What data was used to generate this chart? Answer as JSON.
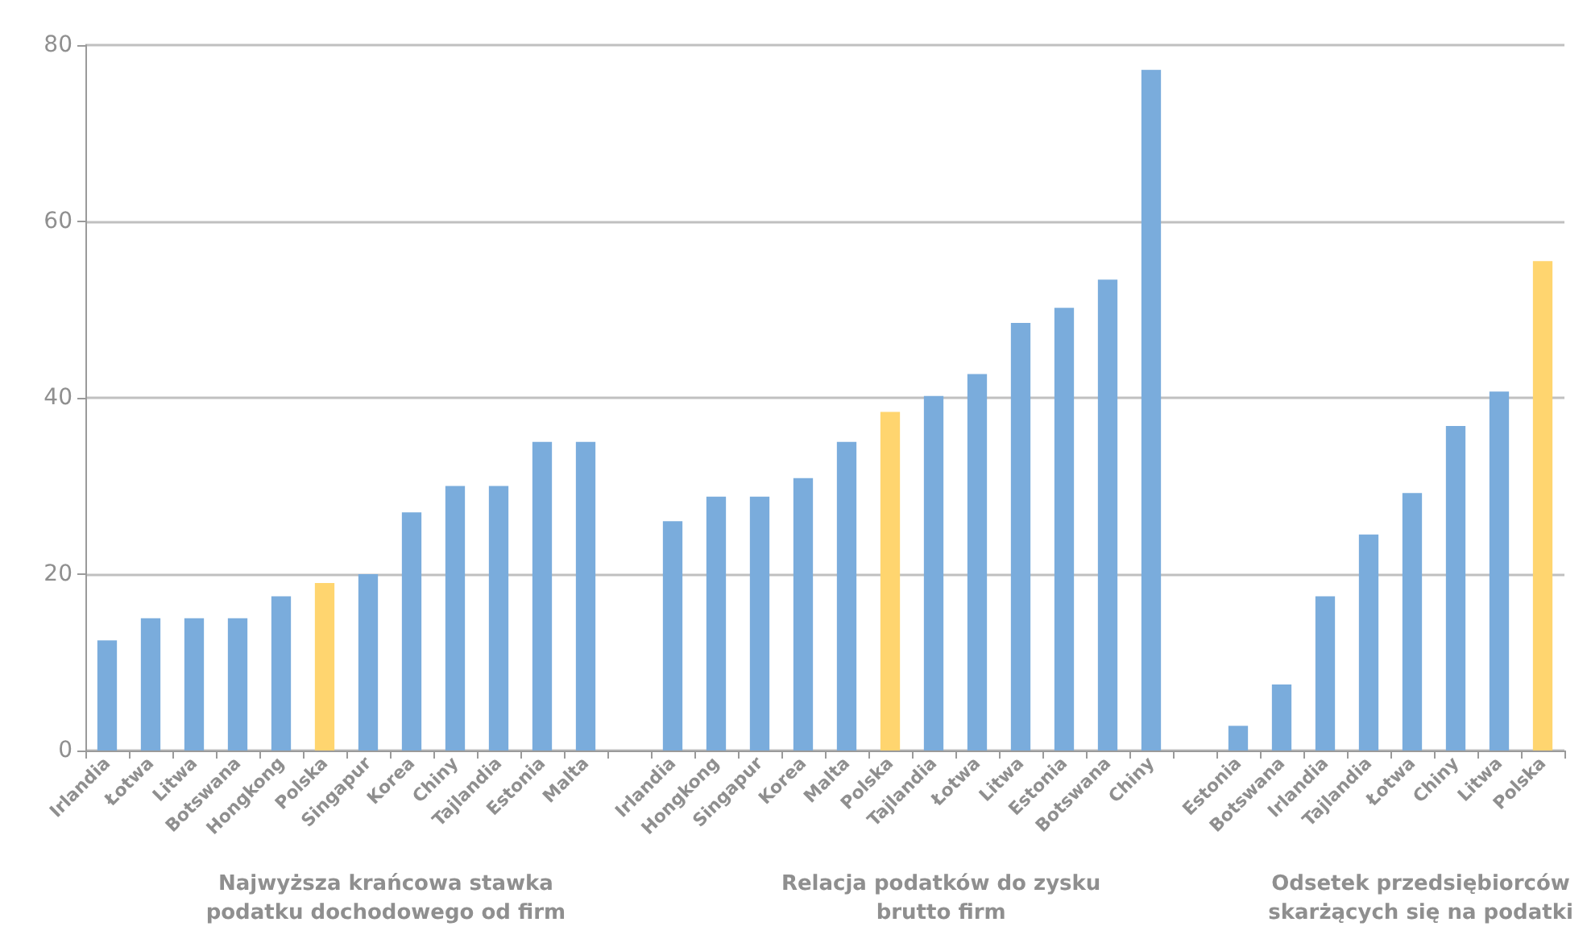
{
  "chart_data": {
    "type": "bar",
    "categories": [
      "Irlandia",
      "Łotwa",
      "Litwa",
      "Botswana",
      "Hongkong",
      "Polska",
      "Singapur",
      "Korea",
      "Chiny",
      "Tajlandia",
      "Estonia",
      "Malta",
      null,
      "Irlandia",
      "Hongkong",
      "Singapur",
      "Korea",
      "Malta",
      "Polska",
      "Tajlandia",
      "Łotwa",
      "Litwa",
      "Estonia",
      "Botswana",
      "Chiny",
      null,
      "Estonia",
      "Botswana",
      "Irlandia",
      "Tajlandia",
      "Łotwa",
      "Chiny",
      "Litwa",
      "Polska"
    ],
    "values": [
      12.5,
      15,
      15,
      15,
      17.5,
      19,
      20,
      27,
      30,
      30,
      35,
      35,
      null,
      26,
      28.8,
      28.8,
      30.9,
      35,
      38.4,
      40.2,
      42.7,
      48.5,
      50.2,
      53.4,
      77.2,
      null,
      2.8,
      7.5,
      17.5,
      24.5,
      29.2,
      36.8,
      40.7,
      55.5
    ],
    "colors": [
      "#7aacdc",
      "#7aacdc",
      "#7aacdc",
      "#7aacdc",
      "#7aacdc",
      "#ffd56f",
      "#7aacdc",
      "#7aacdc",
      "#7aacdc",
      "#7aacdc",
      "#7aacdc",
      "#7aacdc",
      null,
      "#7aacdc",
      "#7aacdc",
      "#7aacdc",
      "#7aacdc",
      "#7aacdc",
      "#ffd56f",
      "#7aacdc",
      "#7aacdc",
      "#7aacdc",
      "#7aacdc",
      "#7aacdc",
      "#7aacdc",
      null,
      "#7aacdc",
      "#7aacdc",
      "#7aacdc",
      "#7aacdc",
      "#7aacdc",
      "#7aacdc",
      "#7aacdc",
      "#ffd56f"
    ],
    "annotations": [
      "Najwyższa krańcowa stawka\npodatku dochodowego od firm",
      "Relacja podatków do zysku\nbrutto firm",
      "Odsetek przedsiębiorców\nskarżących się na podatki"
    ],
    "ylim": [
      0,
      80
    ],
    "yticks": [
      0,
      20,
      40,
      60,
      80
    ],
    "grid": "y"
  }
}
